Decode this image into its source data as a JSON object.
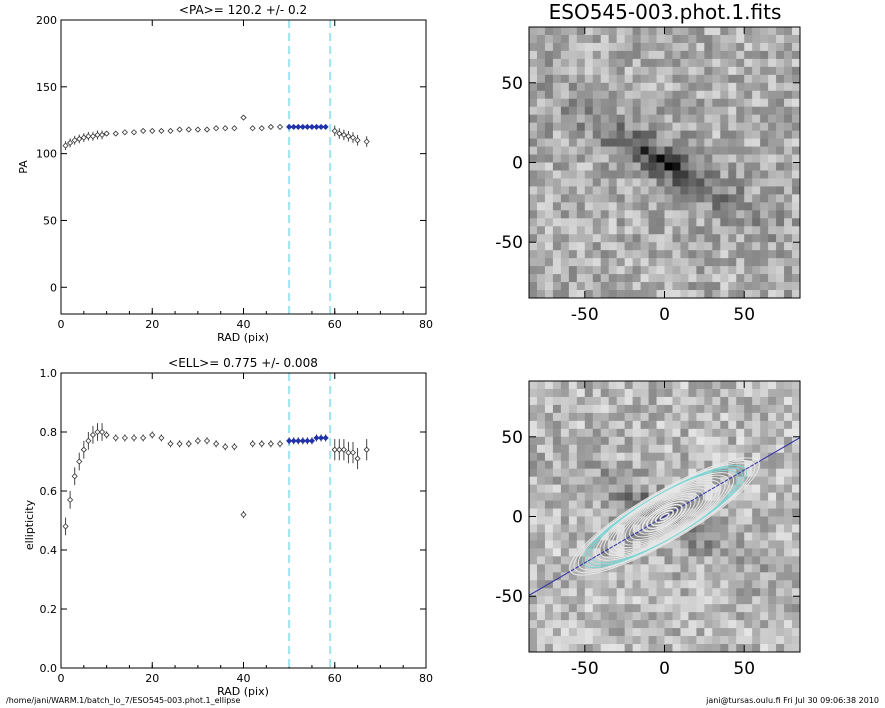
{
  "footer": {
    "path": "/home/jani/WARM.1/batch_lo_7/ESO545-003.phot.1_ellipse",
    "user_date": "jani@tursas.oulu.fi  Fri Jul 30 09:06:38 2010"
  },
  "chart_data": [
    {
      "type": "scatter",
      "title": "<PA>= 120.2 +/-   0.2",
      "xlabel": "RAD (pix)",
      "ylabel": "PA",
      "xlim": [
        0,
        80
      ],
      "ylim": [
        -20,
        200
      ],
      "xticks": [
        "0",
        "20",
        "40",
        "60",
        "80"
      ],
      "yticks": [
        "0",
        "50",
        "100",
        "150",
        "200"
      ],
      "fit_range": [
        50,
        59
      ],
      "series": [
        {
          "x": [
            1,
            2,
            3,
            4,
            5,
            6,
            7,
            8,
            9,
            10,
            12,
            14,
            16,
            18,
            20,
            22,
            24,
            26,
            28,
            30,
            32,
            34,
            36,
            38,
            40,
            42,
            44,
            46,
            48
          ],
          "y": [
            106,
            108,
            110,
            111,
            112,
            113,
            113,
            114,
            114,
            115,
            115,
            116,
            116,
            117,
            117,
            117,
            117,
            118,
            118,
            118,
            118,
            119,
            119,
            119,
            127,
            119,
            119,
            120,
            120
          ]
        },
        {
          "x": [
            50,
            51,
            52,
            53,
            54,
            55,
            56,
            57,
            58
          ],
          "y": [
            120,
            120,
            120,
            120,
            120,
            120,
            120,
            120,
            120
          ]
        },
        {
          "x": [
            60,
            61,
            62,
            63,
            64,
            65,
            67
          ],
          "y": [
            117,
            115,
            114,
            113,
            112,
            110,
            109
          ]
        }
      ]
    },
    {
      "type": "scatter",
      "title": "<ELL>= 0.775 +/-  0.008",
      "xlabel": "RAD (pix)",
      "ylabel": "ellipticity",
      "xlim": [
        0,
        80
      ],
      "ylim": [
        0,
        1
      ],
      "xticks": [
        "0",
        "20",
        "40",
        "60",
        "80"
      ],
      "yticks": [
        "0.0",
        "0.2",
        "0.4",
        "0.6",
        "0.8",
        "1.0"
      ],
      "fit_range": [
        50,
        59
      ],
      "series": [
        {
          "x": [
            1,
            2,
            3,
            4,
            5,
            6,
            7,
            8,
            9,
            10,
            12,
            14,
            16,
            18,
            20,
            22,
            24,
            26,
            28,
            30,
            32,
            34,
            36,
            38,
            40,
            42,
            44,
            46,
            48
          ],
          "y": [
            0.48,
            0.57,
            0.65,
            0.7,
            0.74,
            0.77,
            0.79,
            0.8,
            0.8,
            0.79,
            0.78,
            0.78,
            0.78,
            0.78,
            0.79,
            0.78,
            0.76,
            0.76,
            0.76,
            0.77,
            0.77,
            0.76,
            0.75,
            0.75,
            0.52,
            0.76,
            0.76,
            0.76,
            0.76
          ]
        },
        {
          "x": [
            50,
            51,
            52,
            53,
            54,
            55,
            56,
            57,
            58
          ],
          "y": [
            0.77,
            0.77,
            0.77,
            0.77,
            0.77,
            0.77,
            0.78,
            0.78,
            0.78
          ]
        },
        {
          "x": [
            60,
            61,
            62,
            63,
            64,
            65,
            67
          ],
          "y": [
            0.74,
            0.74,
            0.74,
            0.73,
            0.73,
            0.71,
            0.74
          ]
        }
      ]
    },
    {
      "type": "heatmap",
      "title": "ESO545-003.phot.1.fits",
      "xticks": [
        "-50",
        "0",
        "50"
      ],
      "yticks": [
        "-50",
        "0",
        "50"
      ],
      "xlim": [
        -85,
        85
      ],
      "ylim": [
        -85,
        85
      ]
    },
    {
      "type": "heatmap",
      "title": "",
      "xticks": [
        "-50",
        "0",
        "50"
      ],
      "yticks": [
        "-50",
        "0",
        "50"
      ],
      "xlim": [
        -85,
        85
      ],
      "ylim": [
        -85,
        85
      ],
      "ellipse_pa_deg": 120.2,
      "ellipse_ell": 0.775,
      "colors": {
        "axis_line": "#3333aa",
        "ellipses": "#e8e8e8",
        "highlight": "#7fd6d6"
      }
    }
  ]
}
